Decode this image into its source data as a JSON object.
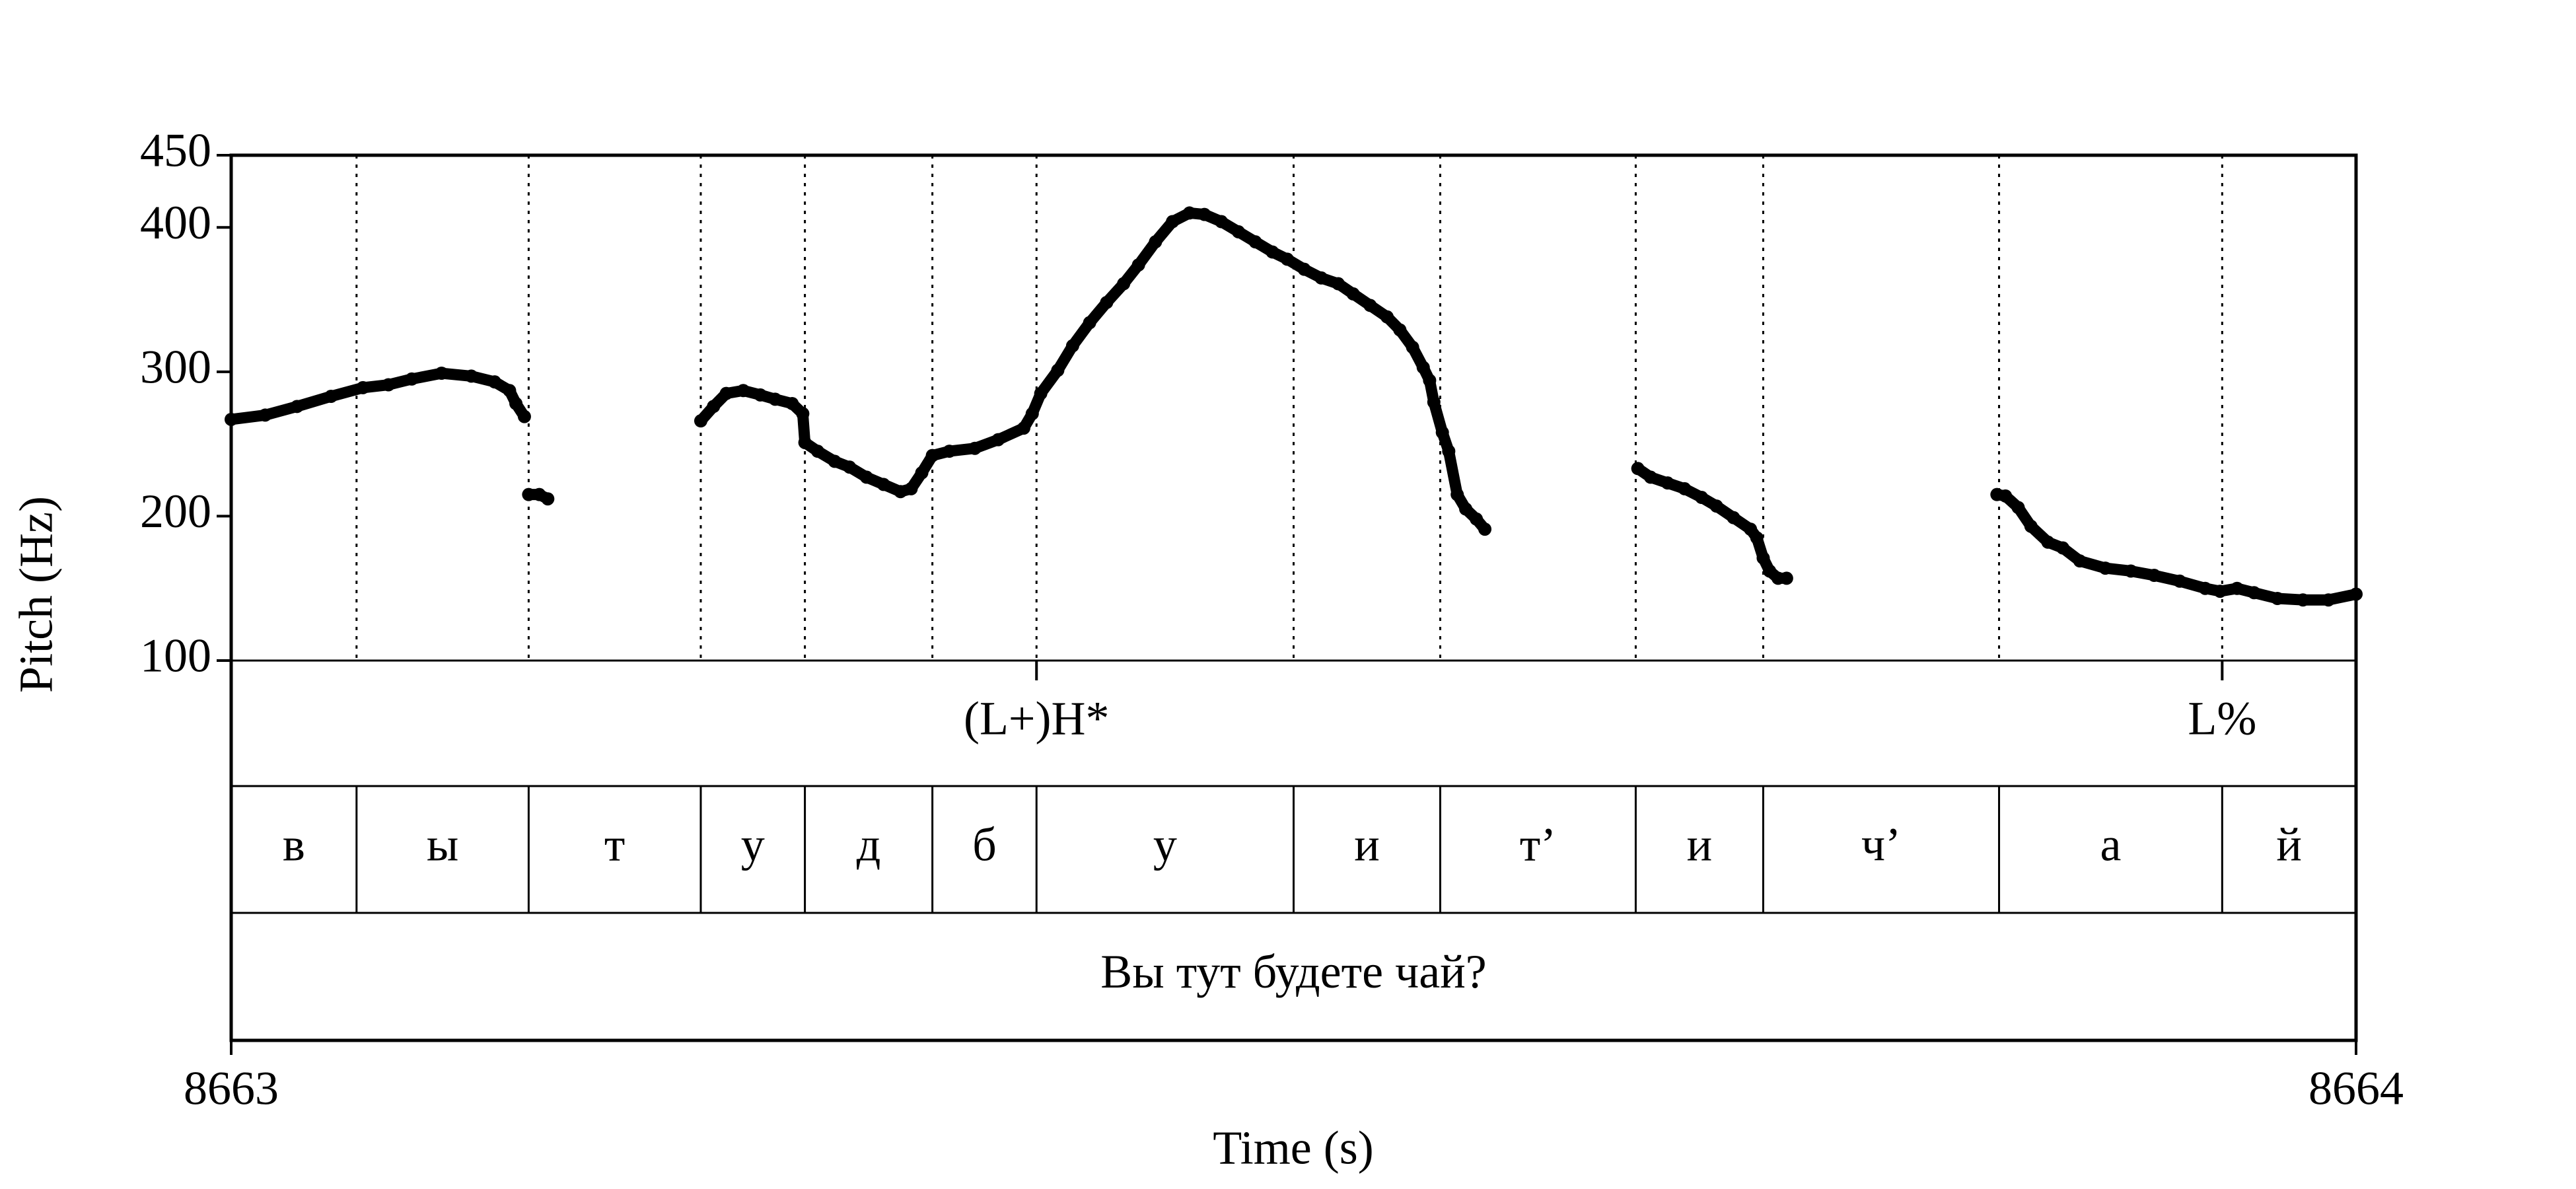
{
  "chart_data": {
    "type": "scatter",
    "x_label": "Time (s)",
    "y_label": "Pitch (Hz)",
    "xlim": [
      8663,
      8664
    ],
    "xticks": [
      8663,
      8664
    ],
    "ylim": [
      100,
      450
    ],
    "yticks": [
      100,
      200,
      300,
      400,
      450
    ],
    "color": "#000000",
    "series": [
      {
        "x": [
          8663.0,
          8663.016,
          8663.031,
          8663.047,
          8663.062,
          8663.074,
          8663.085,
          8663.099,
          8663.113,
          8663.124,
          8663.131,
          8663.134,
          8663.138,
          null,
          8663.14,
          8663.145,
          8663.149,
          null,
          8663.221,
          8663.227,
          8663.233,
          8663.241,
          8663.249,
          8663.256,
          8663.264,
          8663.269,
          8663.27,
          8663.276,
          8663.284,
          8663.291,
          8663.299,
          8663.307,
          8663.315,
          8663.32,
          8663.325,
          8663.33,
          8663.338,
          8663.35,
          8663.361,
          8663.373,
          8663.377,
          8663.381,
          8663.389,
          8663.396,
          8663.404,
          8663.412,
          8663.42,
          8663.427,
          8663.435,
          8663.443,
          8663.451,
          8663.458,
          8663.466,
          8663.474,
          8663.482,
          8663.49,
          8663.497,
          8663.505,
          8663.513,
          8663.521,
          8663.528,
          8663.536,
          8663.544,
          8663.55,
          8663.556,
          8663.561,
          8663.564,
          8663.566,
          8663.57,
          8663.573,
          8663.577,
          8663.581,
          8663.586,
          8663.59,
          null,
          8663.662,
          8663.668,
          8663.676,
          8663.684,
          8663.692,
          8663.699,
          8663.707,
          8663.715,
          8663.718,
          8663.721,
          8663.724,
          8663.728,
          8663.732,
          null,
          8663.831,
          8663.835,
          8663.841,
          8663.847,
          8663.855,
          8663.862,
          8663.87,
          8663.882,
          8663.894,
          8663.905,
          8663.917,
          8663.929,
          8663.936,
          8663.944,
          8663.952,
          8663.963,
          8663.975,
          8663.987,
          8664.0
        ],
        "values": [
          267,
          270,
          276,
          283,
          289,
          291,
          295,
          299,
          297,
          293,
          287,
          278,
          269,
          null,
          215,
          215,
          212,
          null,
          266,
          276,
          285,
          287,
          284,
          281,
          278,
          271,
          251,
          245,
          238,
          234,
          227,
          222,
          217,
          219,
          230,
          242,
          245,
          247,
          253,
          261,
          271,
          285,
          301,
          318,
          334,
          348,
          361,
          374,
          390,
          404,
          410,
          409,
          404,
          397,
          390,
          383,
          378,
          371,
          365,
          361,
          354,
          346,
          338,
          329,
          317,
          303,
          294,
          279,
          258,
          245,
          215,
          205,
          198,
          191,
          null,
          233,
          227,
          223,
          219,
          213,
          207,
          199,
          191,
          185,
          171,
          162,
          157,
          157,
          null,
          215,
          214,
          206,
          193,
          182,
          178,
          169,
          164,
          162,
          159,
          155,
          150,
          148,
          150,
          147,
          143,
          142,
          142,
          146
        ]
      }
    ],
    "tone_tier": {
      "times": [
        8663.379,
        8663.937
      ],
      "labels": [
        "(L+)H*",
        "L%"
      ]
    },
    "segment_tier": {
      "boundaries": [
        8663.059,
        8663.14,
        8663.221,
        8663.27,
        8663.33,
        8663.379,
        8663.5,
        8663.569,
        8663.661,
        8663.721,
        8663.832,
        8663.937
      ],
      "labels": [
        "в",
        "ы",
        "т",
        "у",
        "д",
        "б",
        "у",
        "и",
        "т’",
        "и",
        "ч’",
        "а",
        "й"
      ]
    },
    "sentence_tier": {
      "labels": [
        "Вы тут будете чай?"
      ]
    }
  }
}
